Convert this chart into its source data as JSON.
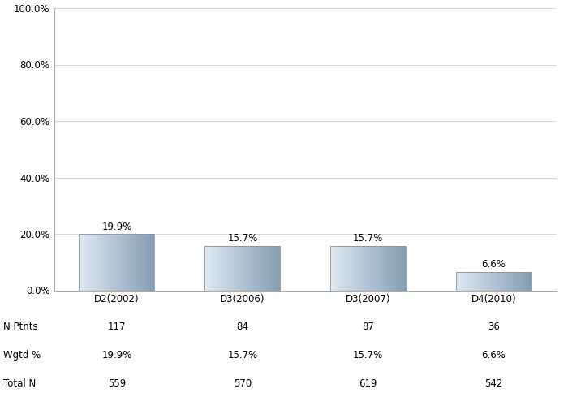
{
  "categories": [
    "D2(2002)",
    "D3(2006)",
    "D3(2007)",
    "D4(2010)"
  ],
  "values": [
    19.9,
    15.7,
    15.7,
    6.6
  ],
  "n_ptnts": [
    117,
    84,
    87,
    36
  ],
  "wgtd_pct": [
    "19.9%",
    "15.7%",
    "15.7%",
    "6.6%"
  ],
  "total_n": [
    559,
    570,
    619,
    542
  ],
  "bar_color_mid": "#a0b8cc",
  "bar_color_light": "#dce8f0",
  "bar_color_dark": "#8098b0",
  "bar_edge_color": "#909090",
  "ylim": [
    0,
    100
  ],
  "yticks": [
    0,
    20,
    40,
    60,
    80,
    100
  ],
  "ytick_labels": [
    "0.0%",
    "20.0%",
    "40.0%",
    "60.0%",
    "80.0%",
    "100.0%"
  ],
  "background_color": "#ffffff",
  "grid_color": "#d8d8d8",
  "label_row1": "N Ptnts",
  "label_row2": "Wgtd %",
  "label_row3": "Total N",
  "bar_width": 0.6,
  "value_label_fontsize": 8.5,
  "axis_label_fontsize": 8.5,
  "table_fontsize": 8.5,
  "n_grad": 40
}
